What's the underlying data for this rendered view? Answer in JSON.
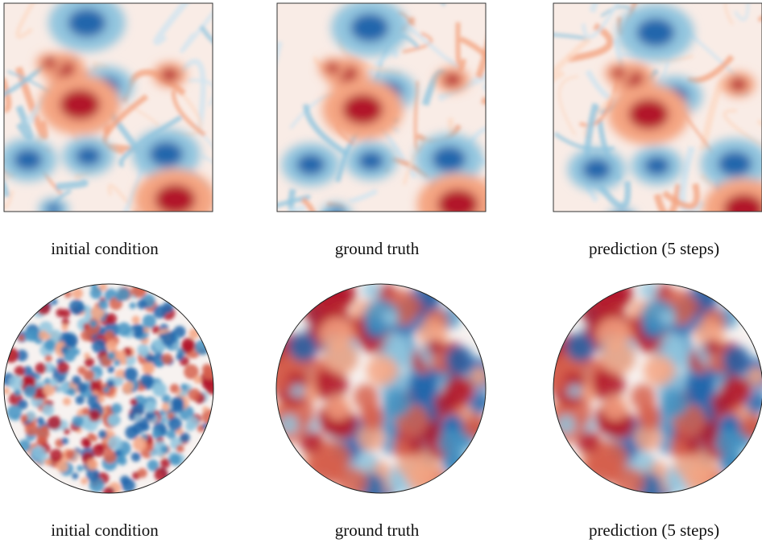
{
  "rows": [
    {
      "panels": [
        {
          "caption": "initial condition"
        },
        {
          "caption": "ground truth"
        },
        {
          "caption": "prediction (5 steps)"
        }
      ]
    },
    {
      "panels": [
        {
          "caption": "initial condition"
        },
        {
          "caption": "ground truth"
        },
        {
          "caption": "prediction (5 steps)"
        }
      ]
    }
  ]
}
